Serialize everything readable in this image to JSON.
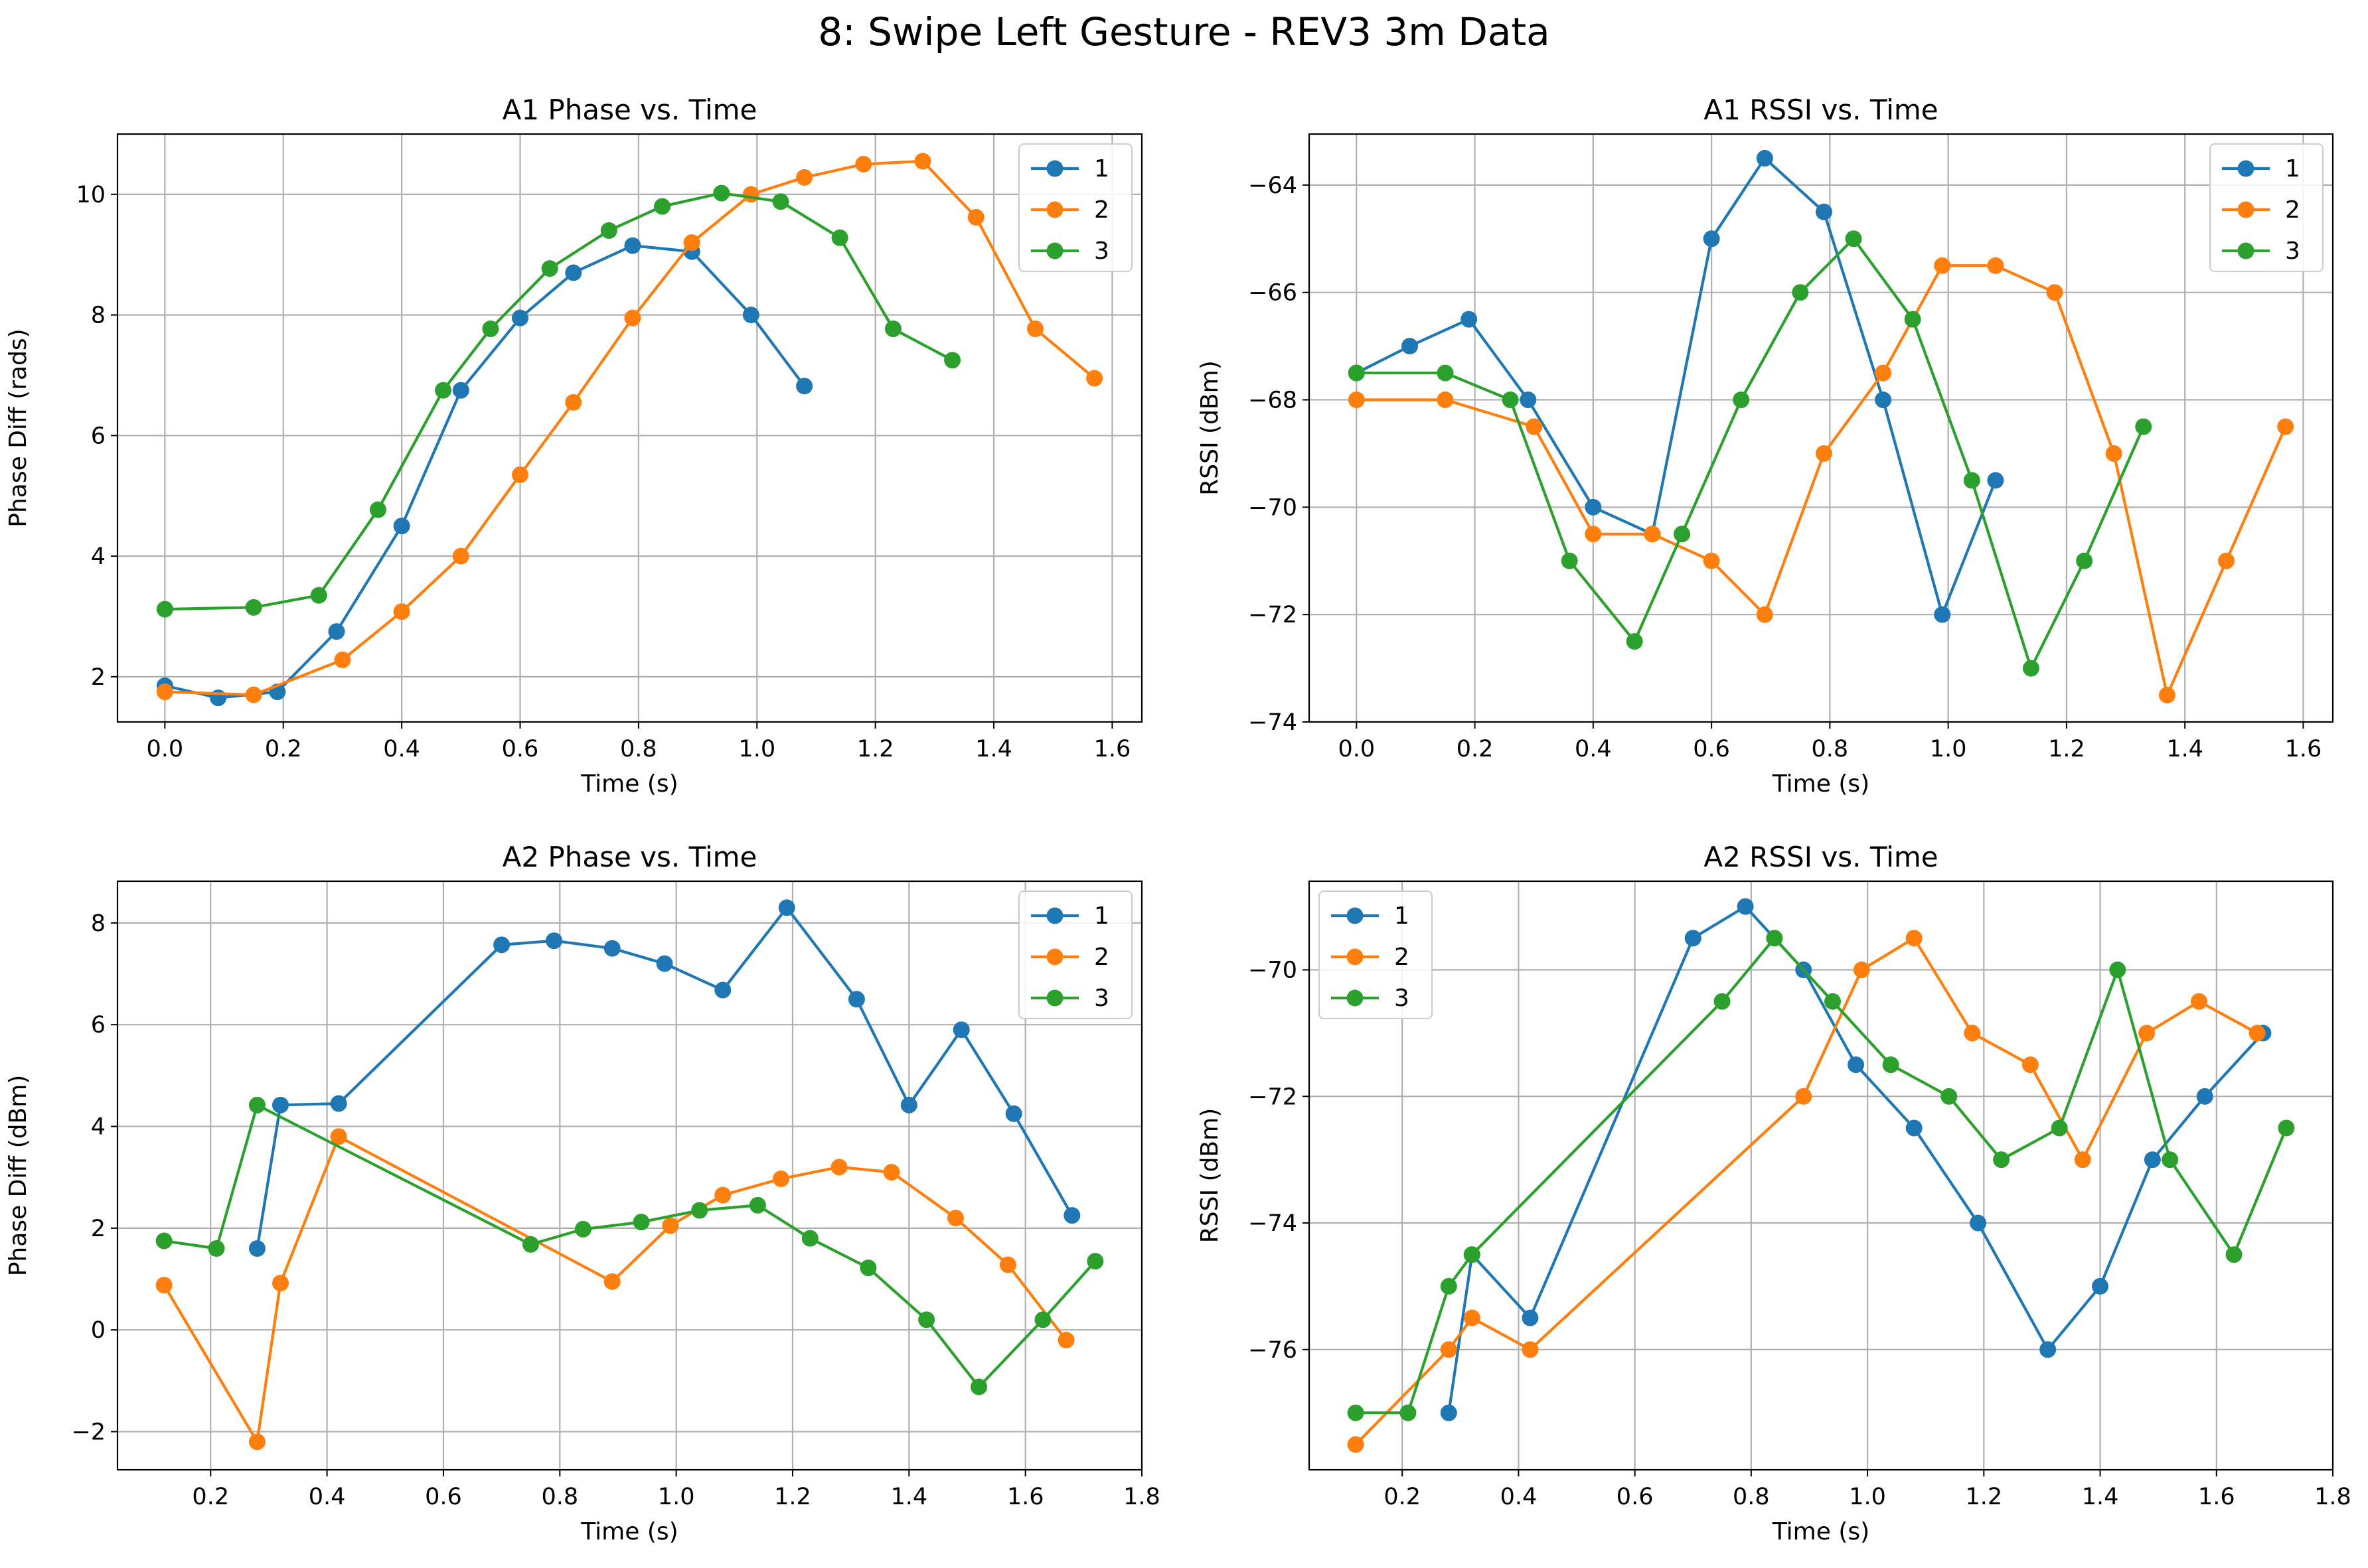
{
  "figure": {
    "title": "8: Swipe Left Gesture - REV3 3m Data"
  },
  "colors": {
    "series": [
      "#1f77b4",
      "#ff7f0e",
      "#2ca02c"
    ],
    "grid": "#b0b0b0"
  },
  "chart_data": [
    {
      "type": "line",
      "title": "A1 Phase vs. Time",
      "xlabel": "Time (s)",
      "ylabel": "Phase Diff (rads)",
      "xlim": [
        -0.08,
        1.65
      ],
      "ylim": [
        1.25,
        11.0
      ],
      "xticks": [
        0.0,
        0.2,
        0.4,
        0.6,
        0.8,
        1.0,
        1.2,
        1.4,
        1.6
      ],
      "xtick_labels": [
        "0.0",
        "0.2",
        "0.4",
        "0.6",
        "0.8",
        "1.0",
        "1.2",
        "1.4",
        "1.6"
      ],
      "yticks": [
        2,
        4,
        6,
        8,
        10
      ],
      "ytick_labels": [
        "2",
        "4",
        "6",
        "8",
        "10"
      ],
      "grid": true,
      "legend_position": "top-right",
      "series": [
        {
          "name": "1",
          "x": [
            0.0,
            0.09,
            0.19,
            0.29,
            0.4,
            0.5,
            0.6,
            0.69,
            0.79,
            0.89,
            0.99,
            1.08
          ],
          "y": [
            1.85,
            1.65,
            1.75,
            2.75,
            4.5,
            6.75,
            7.95,
            8.7,
            9.15,
            9.05,
            8.0,
            6.82
          ]
        },
        {
          "name": "2",
          "x": [
            0.0,
            0.15,
            0.3,
            0.4,
            0.5,
            0.6,
            0.69,
            0.79,
            0.89,
            0.99,
            1.08,
            1.18,
            1.28,
            1.37,
            1.47,
            1.57
          ],
          "y": [
            1.75,
            1.7,
            2.28,
            3.08,
            4.0,
            5.35,
            6.55,
            7.95,
            9.2,
            10.0,
            10.28,
            10.5,
            10.55,
            9.62,
            7.77,
            6.95
          ]
        },
        {
          "name": "3",
          "x": [
            0.0,
            0.15,
            0.26,
            0.36,
            0.47,
            0.55,
            0.65,
            0.75,
            0.84,
            0.94,
            1.04,
            1.14,
            1.23,
            1.33
          ],
          "y": [
            3.12,
            3.15,
            3.35,
            4.77,
            6.75,
            7.77,
            8.77,
            9.4,
            9.8,
            10.02,
            9.88,
            9.28,
            7.77,
            7.25
          ]
        }
      ]
    },
    {
      "type": "line",
      "title": "A1 RSSI vs. Time",
      "xlabel": "Time (s)",
      "ylabel": "RSSI (dBm)",
      "xlim": [
        -0.08,
        1.65
      ],
      "ylim": [
        -74.0,
        -63.05
      ],
      "xticks": [
        0.0,
        0.2,
        0.4,
        0.6,
        0.8,
        1.0,
        1.2,
        1.4,
        1.6
      ],
      "xtick_labels": [
        "0.0",
        "0.2",
        "0.4",
        "0.6",
        "0.8",
        "1.0",
        "1.2",
        "1.4",
        "1.6"
      ],
      "yticks": [
        -64,
        -66,
        -68,
        -70,
        -72,
        -74
      ],
      "ytick_labels": [
        "−64",
        "−66",
        "−68",
        "−70",
        "−72",
        "−74"
      ],
      "grid": true,
      "legend_position": "top-right",
      "series": [
        {
          "name": "1",
          "x": [
            0.0,
            0.09,
            0.19,
            0.29,
            0.4,
            0.5,
            0.6,
            0.69,
            0.79,
            0.89,
            0.99,
            1.08
          ],
          "y": [
            -67.5,
            -67.0,
            -66.5,
            -68.0,
            -70.0,
            -70.5,
            -65.0,
            -63.5,
            -64.5,
            -68.0,
            -72.0,
            -69.5
          ]
        },
        {
          "name": "2",
          "x": [
            0.0,
            0.15,
            0.3,
            0.4,
            0.5,
            0.6,
            0.69,
            0.79,
            0.89,
            0.99,
            1.08,
            1.18,
            1.28,
            1.37,
            1.47,
            1.57
          ],
          "y": [
            -68.0,
            -68.0,
            -68.5,
            -70.5,
            -70.5,
            -71.0,
            -72.0,
            -69.0,
            -67.5,
            -65.5,
            -65.5,
            -66.0,
            -69.0,
            -73.5,
            -71.0,
            -68.5
          ]
        },
        {
          "name": "3",
          "x": [
            0.0,
            0.15,
            0.26,
            0.36,
            0.47,
            0.55,
            0.65,
            0.75,
            0.84,
            0.94,
            1.04,
            1.14,
            1.23,
            1.33
          ],
          "y": [
            -67.5,
            -67.5,
            -68.0,
            -71.0,
            -72.5,
            -70.5,
            -68.0,
            -66.0,
            -65.0,
            -66.5,
            -69.5,
            -73.0,
            -71.0,
            -68.5
          ]
        }
      ]
    },
    {
      "type": "line",
      "title": "A2 Phase vs. Time",
      "xlabel": "Time (s)",
      "ylabel": "Phase Diff (dBm)",
      "xlim": [
        0.04,
        1.8
      ],
      "ylim": [
        -2.75,
        8.82
      ],
      "xticks": [
        0.2,
        0.4,
        0.6,
        0.8,
        1.0,
        1.2,
        1.4,
        1.6,
        1.8
      ],
      "xtick_labels": [
        "0.2",
        "0.4",
        "0.6",
        "0.8",
        "1.0",
        "1.2",
        "1.4",
        "1.6",
        "1.8"
      ],
      "yticks": [
        -2,
        0,
        2,
        4,
        6,
        8
      ],
      "ytick_labels": [
        "−2",
        "0",
        "2",
        "4",
        "6",
        "8"
      ],
      "grid": true,
      "legend_position": "top-right",
      "series": [
        {
          "name": "1",
          "x": [
            0.28,
            0.32,
            0.42,
            0.7,
            0.79,
            0.89,
            0.98,
            1.08,
            1.19,
            1.31,
            1.4,
            1.49,
            1.58,
            1.68
          ],
          "y": [
            1.6,
            4.42,
            4.45,
            7.57,
            7.65,
            7.5,
            7.2,
            6.68,
            8.3,
            6.5,
            4.42,
            5.9,
            4.25,
            2.25
          ]
        },
        {
          "name": "2",
          "x": [
            0.12,
            0.28,
            0.32,
            0.42,
            0.89,
            0.99,
            1.08,
            1.18,
            1.28,
            1.37,
            1.48,
            1.57,
            1.67
          ],
          "y": [
            0.88,
            -2.2,
            0.92,
            3.8,
            0.95,
            2.05,
            2.65,
            2.97,
            3.2,
            3.1,
            2.2,
            1.28,
            -0.2
          ]
        },
        {
          "name": "3",
          "x": [
            0.12,
            0.21,
            0.28,
            0.75,
            0.84,
            0.94,
            1.04,
            1.14,
            1.23,
            1.33,
            1.43,
            1.52,
            1.63,
            1.72
          ],
          "y": [
            1.75,
            1.6,
            4.42,
            1.68,
            1.98,
            2.12,
            2.35,
            2.45,
            1.8,
            1.22,
            0.2,
            -1.12,
            0.2,
            1.35
          ]
        }
      ]
    },
    {
      "type": "line",
      "title": "A2 RSSI vs. Time",
      "xlabel": "Time (s)",
      "ylabel": "RSSI (dBm)",
      "xlim": [
        0.04,
        1.8
      ],
      "ylim": [
        -77.9,
        -68.6
      ],
      "xticks": [
        0.2,
        0.4,
        0.6,
        0.8,
        1.0,
        1.2,
        1.4,
        1.6,
        1.8
      ],
      "xtick_labels": [
        "0.2",
        "0.4",
        "0.6",
        "0.8",
        "1.0",
        "1.2",
        "1.4",
        "1.6",
        "1.8"
      ],
      "yticks": [
        -70,
        -72,
        -74,
        -76
      ],
      "ytick_labels": [
        "−70",
        "−72",
        "−74",
        "−76"
      ],
      "grid": true,
      "legend_position": "top-left",
      "series": [
        {
          "name": "1",
          "x": [
            0.28,
            0.32,
            0.42,
            0.7,
            0.79,
            0.89,
            0.98,
            1.08,
            1.19,
            1.31,
            1.4,
            1.49,
            1.58,
            1.68
          ],
          "y": [
            -77.0,
            -74.5,
            -75.5,
            -69.5,
            -69.0,
            -70.0,
            -71.5,
            -72.5,
            -74.0,
            -76.0,
            -75.0,
            -73.0,
            -72.0,
            -71.0
          ]
        },
        {
          "name": "2",
          "x": [
            0.12,
            0.28,
            0.32,
            0.42,
            0.89,
            0.99,
            1.08,
            1.18,
            1.28,
            1.37,
            1.48,
            1.57,
            1.67
          ],
          "y": [
            -77.5,
            -76.0,
            -75.5,
            -76.0,
            -72.0,
            -70.0,
            -69.5,
            -71.0,
            -71.5,
            -73.0,
            -71.0,
            -70.5,
            -71.0
          ]
        },
        {
          "name": "3",
          "x": [
            0.12,
            0.21,
            0.28,
            0.32,
            0.75,
            0.84,
            0.94,
            1.04,
            1.14,
            1.23,
            1.33,
            1.43,
            1.52,
            1.63,
            1.72
          ],
          "y": [
            -77.0,
            -77.0,
            -75.0,
            -74.5,
            -70.5,
            -69.5,
            -70.5,
            -71.5,
            -72.0,
            -73.0,
            -72.5,
            -70.0,
            -73.0,
            -74.5,
            -72.5
          ]
        }
      ]
    }
  ]
}
